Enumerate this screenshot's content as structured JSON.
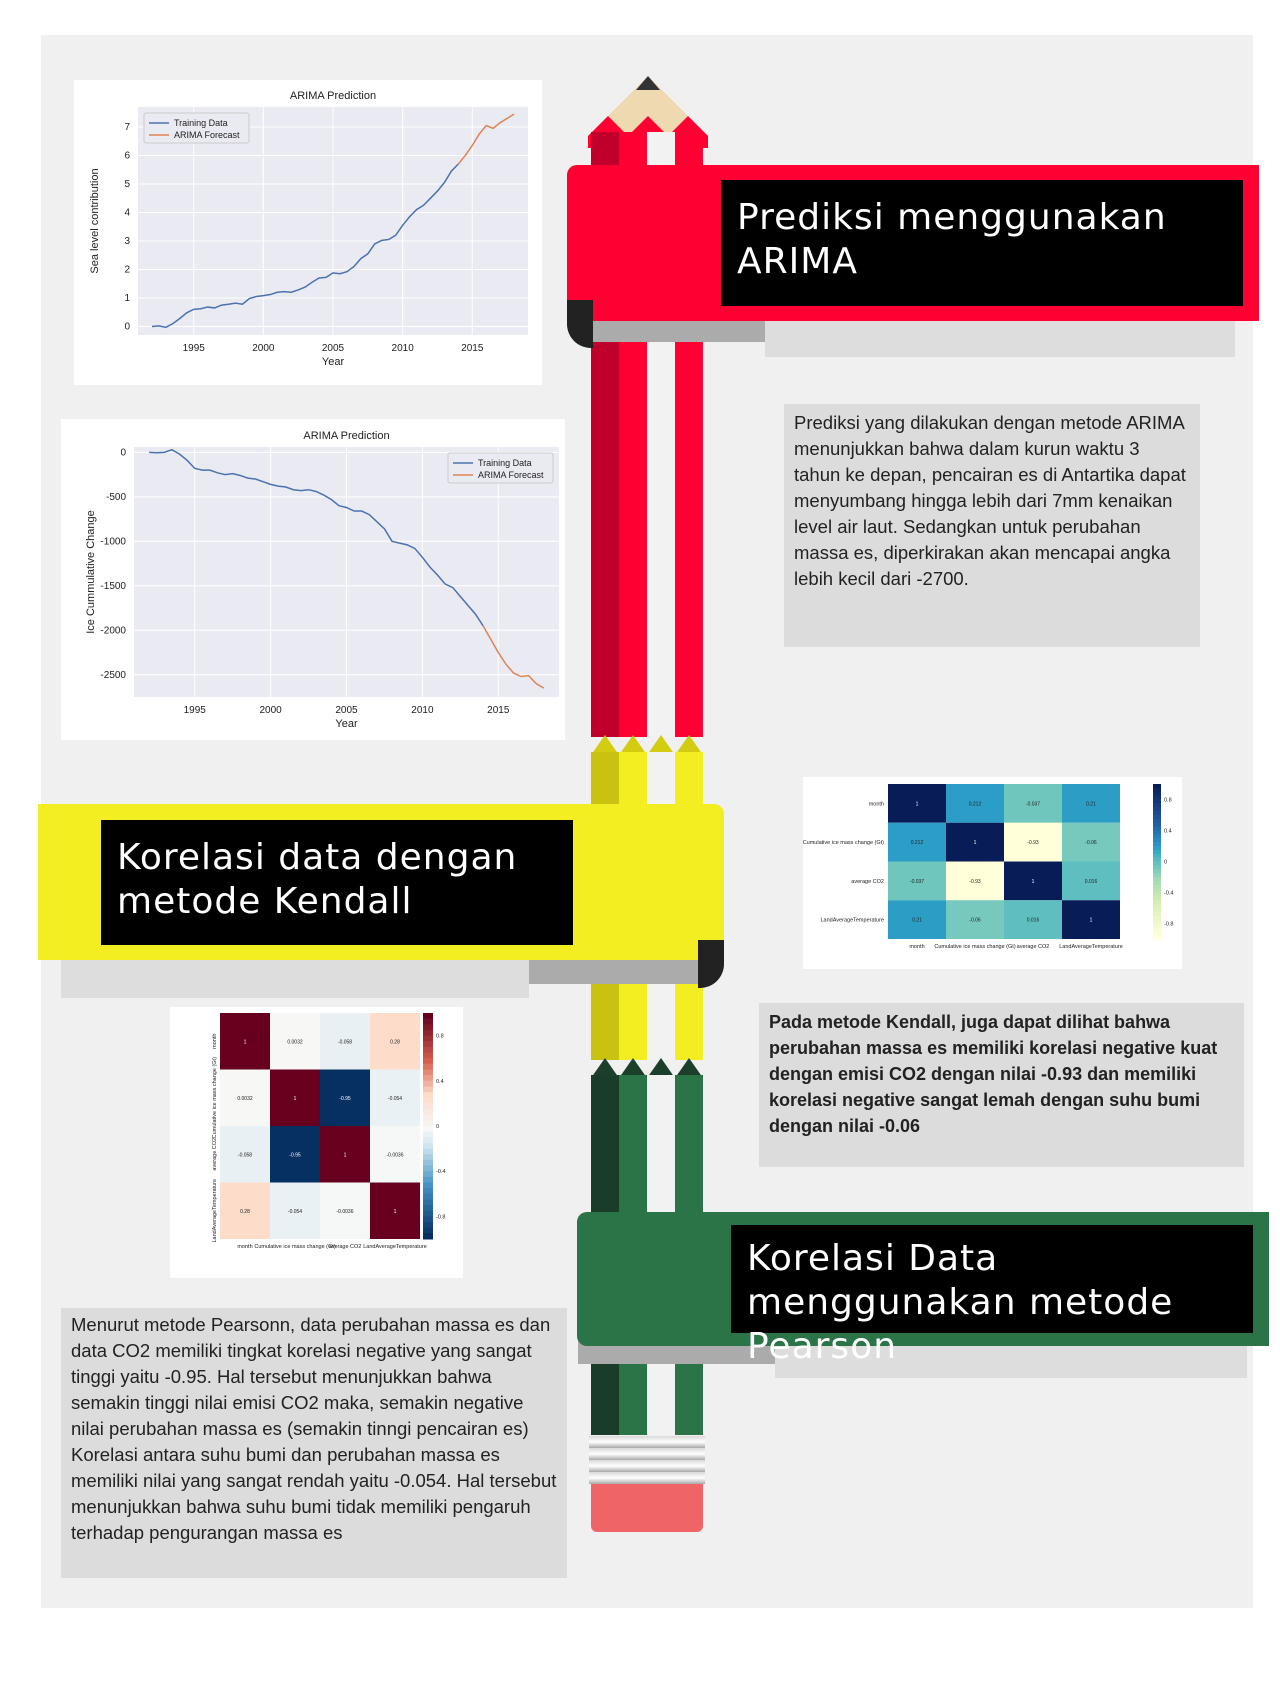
{
  "colors": {
    "red": "#ff0033",
    "yellow": "#f2ee22",
    "green": "#2a7447",
    "black": "#000000",
    "line_training": "#4c72b0",
    "line_forecast": "#dd8452",
    "eraser": "#ef6464"
  },
  "sections": {
    "arima_title": "Prediksi menggunakan ARIMA",
    "kendall_title": "Korelasi data dengan metode Kendall",
    "pearson_title": "Korelasi Data menggunakan metode Pearson"
  },
  "texts": {
    "arima_desc": "Prediksi yang dilakukan dengan metode ARIMA menunjukkan bahwa dalam kurun waktu 3 tahun ke depan, pencairan es di Antartika dapat menyumbang hingga lebih dari 7mm kenaikan level air laut. Sedangkan untuk perubahan massa es, diperkirakan akan mencapai angka lebih kecil dari -2700.",
    "kendall_desc": "Pada metode Kendall, juga dapat dilihat bahwa perubahan massa es memiliki korelasi negative kuat dengan emisi CO2 dengan nilai -0.93 dan memiliki korelasi negative sangat lemah dengan suhu bumi dengan nilai -0.06",
    "pearson_desc_1": "Menurut metode Pearsonn, data perubahan massa es dan data CO2 memiliki tingkat korelasi negative yang sangat tinggi yaitu -0.95. Hal tersebut menunjukkan bahwa semakin tinggi nilai emisi CO2 maka, semakin negative nilai perubahan massa es (semakin tinngi pencairan es)",
    "pearson_desc_2": "Korelasi antara suhu bumi dan perubahan massa es memiliki nilai yang sangat rendah yaitu -0.054. Hal tersebut menunjukkan bahwa suhu bumi tidak memiliki pengaruh terhadap pengurangan massa es"
  },
  "chart_data": [
    {
      "type": "line",
      "title": "ARIMA Prediction",
      "xlabel": "Year",
      "ylabel": "Sea level contribution",
      "xlim": [
        1991,
        2019
      ],
      "ylim": [
        -0.3,
        7.7
      ],
      "xticks": [
        1995,
        2000,
        2005,
        2010,
        2015
      ],
      "yticks": [
        0,
        1,
        2,
        3,
        4,
        5,
        6,
        7
      ],
      "legend_position": "upper-left",
      "series": [
        {
          "name": "Training Data",
          "color": "#4c72b0",
          "x": [
            1992,
            1992.5,
            1993,
            1993.5,
            1994,
            1994.5,
            1995,
            1995.5,
            1996,
            1996.5,
            1997,
            1997.5,
            1998,
            1998.5,
            1999,
            1999.5,
            2000,
            2000.5,
            2001,
            2001.5,
            2002,
            2002.5,
            2003,
            2003.5,
            2004,
            2004.5,
            2005,
            2005.5,
            2006,
            2006.5,
            2007,
            2007.5,
            2008,
            2008.5,
            2009,
            2009.5,
            2010,
            2010.5,
            2011,
            2011.5,
            2012,
            2012.5,
            2013,
            2013.5,
            2014
          ],
          "y": [
            0,
            0.02,
            -0.03,
            0.1,
            0.28,
            0.48,
            0.6,
            0.62,
            0.68,
            0.65,
            0.75,
            0.78,
            0.82,
            0.78,
            0.98,
            1.05,
            1.08,
            1.12,
            1.2,
            1.22,
            1.2,
            1.28,
            1.38,
            1.55,
            1.7,
            1.72,
            1.88,
            1.85,
            1.92,
            2.1,
            2.38,
            2.55,
            2.9,
            3.02,
            3.05,
            3.2,
            3.55,
            3.85,
            4.1,
            4.25,
            4.5,
            4.75,
            5.05,
            5.45,
            5.7
          ]
        },
        {
          "name": "ARIMA Forecast",
          "color": "#dd8452",
          "x": [
            2014,
            2014.5,
            2015,
            2015.5,
            2016,
            2016.5,
            2017,
            2017.5,
            2018
          ],
          "y": [
            5.7,
            6.0,
            6.35,
            6.75,
            7.05,
            6.95,
            7.15,
            7.3,
            7.45
          ]
        }
      ]
    },
    {
      "type": "line",
      "title": "ARIMA Prediction",
      "xlabel": "Year",
      "ylabel": "Ice Cummulative Change",
      "xlim": [
        1991,
        2019
      ],
      "ylim": [
        -2750,
        60
      ],
      "xticks": [
        1995,
        2000,
        2005,
        2010,
        2015
      ],
      "yticks": [
        0,
        -500,
        -1000,
        -1500,
        -2000,
        -2500
      ],
      "legend_position": "upper-right",
      "series": [
        {
          "name": "Training Data",
          "color": "#4c72b0",
          "x": [
            1992,
            1992.5,
            1993,
            1993.5,
            1994,
            1994.5,
            1995,
            1995.5,
            1996,
            1996.5,
            1997,
            1997.5,
            1998,
            1998.5,
            1999,
            1999.5,
            2000,
            2000.5,
            2001,
            2001.5,
            2002,
            2002.5,
            2003,
            2003.5,
            2004,
            2004.5,
            2005,
            2005.5,
            2006,
            2006.5,
            2007,
            2007.5,
            2008,
            2008.5,
            2009,
            2009.5,
            2010,
            2010.5,
            2011,
            2011.5,
            2012,
            2012.5,
            2013,
            2013.5,
            2014
          ],
          "y": [
            0,
            -5,
            0,
            30,
            -20,
            -90,
            -180,
            -200,
            -200,
            -230,
            -250,
            -240,
            -260,
            -290,
            -300,
            -330,
            -360,
            -380,
            -390,
            -420,
            -430,
            -420,
            -440,
            -480,
            -530,
            -600,
            -620,
            -660,
            -660,
            -700,
            -780,
            -860,
            -1000,
            -1020,
            -1040,
            -1080,
            -1180,
            -1290,
            -1380,
            -1480,
            -1520,
            -1620,
            -1720,
            -1820,
            -1950
          ]
        },
        {
          "name": "ARIMA Forecast",
          "color": "#dd8452",
          "x": [
            2014,
            2014.5,
            2015,
            2015.5,
            2016,
            2016.5,
            2017,
            2017.5,
            2018
          ],
          "y": [
            -1950,
            -2100,
            -2250,
            -2380,
            -2480,
            -2520,
            -2510,
            -2600,
            -2650
          ]
        }
      ]
    },
    {
      "type": "heatmap",
      "labels": [
        "month",
        "Cumulative ice mass change (Gt)",
        "average CO2",
        "LandAverageTemperature"
      ],
      "values": [
        [
          1,
          0.212,
          -0.037,
          0.21
        ],
        [
          0.212,
          1,
          -0.93,
          -0.06
        ],
        [
          -0.037,
          -0.93,
          1,
          0.016
        ],
        [
          0.21,
          -0.06,
          0.016,
          1
        ]
      ],
      "colorbar_ticks": [
        0.8,
        0.4,
        0.0,
        -0.4,
        -0.8
      ],
      "colormap": "YlGnBu"
    },
    {
      "type": "heatmap",
      "labels": [
        "month",
        "Cumulative ice mass change (Gt)",
        "average CO2",
        "LandAverageTemperature"
      ],
      "values": [
        [
          1,
          0.0032,
          -0.058,
          0.28
        ],
        [
          0.0032,
          1,
          -0.95,
          -0.054
        ],
        [
          -0.058,
          -0.95,
          1,
          -0.0036
        ],
        [
          0.28,
          -0.054,
          -0.0036,
          1
        ]
      ],
      "colorbar_ticks": [
        0.8,
        0.4,
        0.0,
        -0.4,
        -0.8
      ],
      "colormap": "RdBu_r"
    }
  ]
}
